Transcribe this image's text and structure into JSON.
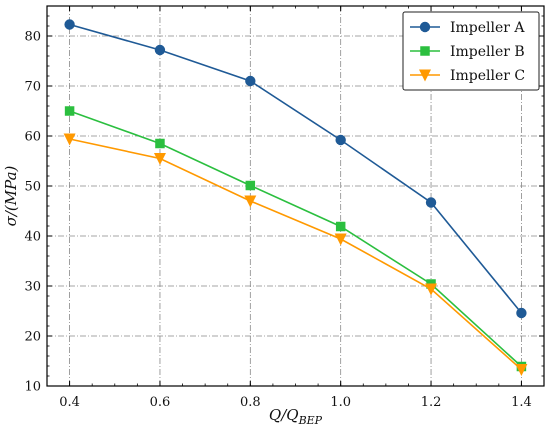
{
  "chart_data": {
    "type": "line",
    "xlabel": "Q/Q_BEP",
    "ylabel": "σ/(MPa)",
    "xlim": [
      0.35,
      1.45
    ],
    "ylim": [
      10,
      86
    ],
    "x": [
      0.4,
      0.6,
      0.8,
      1.0,
      1.2,
      1.4
    ],
    "x_ticks": [
      "0.4",
      "0.6",
      "0.8",
      "1.0",
      "1.2",
      "1.4"
    ],
    "y_ticks": [
      "10",
      "20",
      "30",
      "40",
      "50",
      "60",
      "70",
      "80"
    ],
    "grid": true,
    "legend_position": "top-right",
    "series": [
      {
        "name": "Impeller A",
        "color": "#1f5a96",
        "marker": "circle",
        "values": [
          82.3,
          77.2,
          71.0,
          59.2,
          46.7,
          24.6
        ]
      },
      {
        "name": "Impeller B",
        "color": "#2bbf3f",
        "marker": "square",
        "values": [
          65.0,
          58.5,
          50.1,
          41.9,
          30.4,
          13.9
        ]
      },
      {
        "name": "Impeller C",
        "color": "#ff9900",
        "marker": "triangle-down",
        "values": [
          59.4,
          55.5,
          47.0,
          39.4,
          29.4,
          13.3
        ]
      }
    ]
  }
}
